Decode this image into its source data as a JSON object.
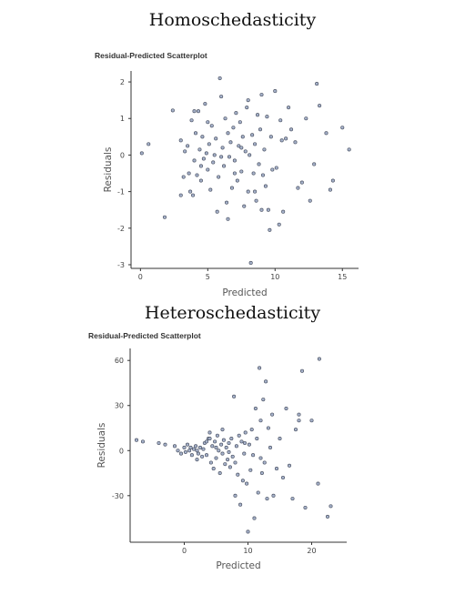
{
  "headings": {
    "top": "Homoschedasticity",
    "bottom": "Heteroschedasticity"
  },
  "colors": {
    "point_fill": "#a7b3cc",
    "point_stroke": "#4e5566",
    "axis": "#333333"
  },
  "chart_data": [
    {
      "type": "scatter",
      "title": "Residual-Predicted Scatterplot",
      "xlabel": "Predicted",
      "ylabel": "Residuals",
      "xlim": [
        -0.7,
        16.2
      ],
      "ylim": [
        -3.1,
        2.3
      ],
      "xticks": [
        0,
        5,
        10,
        15
      ],
      "yticks": [
        2,
        1,
        0,
        -1,
        -2,
        -3
      ],
      "grid": false,
      "points": [
        [
          0.1,
          0.05
        ],
        [
          0.6,
          0.3
        ],
        [
          1.8,
          -1.7
        ],
        [
          2.4,
          1.22
        ],
        [
          3.0,
          0.4
        ],
        [
          3.2,
          -0.6
        ],
        [
          3.3,
          0.1
        ],
        [
          3.5,
          0.25
        ],
        [
          3.6,
          -0.5
        ],
        [
          3.7,
          -1.0
        ],
        [
          3.8,
          0.95
        ],
        [
          3.9,
          -1.1
        ],
        [
          4.0,
          -0.15
        ],
        [
          4.1,
          0.6
        ],
        [
          4.2,
          -0.55
        ],
        [
          4.3,
          1.2
        ],
        [
          4.4,
          0.15
        ],
        [
          4.5,
          -0.3
        ],
        [
          4.6,
          0.5
        ],
        [
          4.7,
          -0.1
        ],
        [
          4.8,
          1.4
        ],
        [
          4.9,
          0.05
        ],
        [
          5.0,
          -0.4
        ],
        [
          5.1,
          0.3
        ],
        [
          5.2,
          -0.95
        ],
        [
          5.3,
          0.8
        ],
        [
          5.4,
          -0.2
        ],
        [
          5.5,
          0.0
        ],
        [
          5.6,
          0.45
        ],
        [
          5.7,
          -1.55
        ],
        [
          5.8,
          -0.6
        ],
        [
          5.9,
          2.1
        ],
        [
          6.0,
          1.6
        ],
        [
          6.1,
          0.2
        ],
        [
          6.2,
          -0.3
        ],
        [
          6.3,
          1.0
        ],
        [
          6.4,
          -1.3
        ],
        [
          6.5,
          0.6
        ],
        [
          6.6,
          -0.05
        ],
        [
          6.7,
          0.35
        ],
        [
          6.8,
          -0.9
        ],
        [
          6.9,
          0.75
        ],
        [
          7.0,
          -0.15
        ],
        [
          7.1,
          1.15
        ],
        [
          7.2,
          -0.7
        ],
        [
          7.3,
          0.25
        ],
        [
          7.4,
          0.9
        ],
        [
          7.5,
          -0.45
        ],
        [
          7.6,
          0.5
        ],
        [
          7.7,
          -1.4
        ],
        [
          7.8,
          0.1
        ],
        [
          7.9,
          1.3
        ],
        [
          8.0,
          -1.0
        ],
        [
          8.1,
          0.0
        ],
        [
          8.2,
          -2.95
        ],
        [
          8.3,
          0.55
        ],
        [
          8.4,
          -0.5
        ],
        [
          8.5,
          0.3
        ],
        [
          8.6,
          -1.25
        ],
        [
          8.7,
          1.1
        ],
        [
          8.8,
          -0.25
        ],
        [
          8.9,
          0.7
        ],
        [
          9.0,
          1.65
        ],
        [
          9.1,
          -0.55
        ],
        [
          9.2,
          0.15
        ],
        [
          9.3,
          -0.85
        ],
        [
          9.4,
          1.05
        ],
        [
          9.5,
          -1.5
        ],
        [
          9.6,
          -2.05
        ],
        [
          9.7,
          0.5
        ],
        [
          9.8,
          -0.4
        ],
        [
          10.0,
          1.75
        ],
        [
          10.1,
          -0.35
        ],
        [
          10.3,
          -1.9
        ],
        [
          10.4,
          0.95
        ],
        [
          10.6,
          -1.55
        ],
        [
          10.8,
          0.45
        ],
        [
          11.0,
          1.3
        ],
        [
          11.2,
          0.7
        ],
        [
          11.5,
          0.35
        ],
        [
          12.0,
          -0.75
        ],
        [
          12.3,
          1.0
        ],
        [
          12.6,
          -1.25
        ],
        [
          12.9,
          -0.25
        ],
        [
          13.1,
          1.95
        ],
        [
          13.3,
          1.35
        ],
        [
          13.8,
          0.6
        ],
        [
          14.1,
          -0.95
        ],
        [
          14.3,
          -0.7
        ],
        [
          15.0,
          0.75
        ],
        [
          15.5,
          0.15
        ],
        [
          5.0,
          0.9
        ],
        [
          6.5,
          -1.75
        ],
        [
          7.0,
          -0.5
        ],
        [
          3.0,
          -1.1
        ],
        [
          9.0,
          -1.5
        ],
        [
          4.5,
          -0.7
        ],
        [
          8.0,
          1.5
        ],
        [
          11.7,
          -0.9
        ],
        [
          6.0,
          -0.05
        ],
        [
          7.5,
          0.2
        ],
        [
          10.5,
          0.4
        ],
        [
          4.0,
          1.2
        ],
        [
          8.5,
          -1.0
        ]
      ]
    },
    {
      "type": "scatter",
      "title": "Residual-Predicted Scatterplot",
      "xlabel": "Predicted",
      "ylabel": "Residuals",
      "xlim": [
        -8.5,
        25.5
      ],
      "ylim": [
        -61,
        68
      ],
      "xticks": [
        0,
        10,
        20
      ],
      "yticks": [
        60,
        30,
        0,
        -30
      ],
      "grid": false,
      "points": [
        [
          -7.5,
          7
        ],
        [
          -6.5,
          6
        ],
        [
          -4,
          5
        ],
        [
          -3,
          4
        ],
        [
          -1.5,
          3
        ],
        [
          -1,
          0
        ],
        [
          -0.5,
          -2
        ],
        [
          0,
          2
        ],
        [
          0.2,
          -1
        ],
        [
          0.5,
          4
        ],
        [
          0.8,
          0
        ],
        [
          1,
          2
        ],
        [
          1.2,
          -3
        ],
        [
          1.5,
          1
        ],
        [
          1.8,
          3
        ],
        [
          2,
          0
        ],
        [
          2.2,
          -2
        ],
        [
          2.5,
          2
        ],
        [
          2.8,
          -4
        ],
        [
          3,
          1
        ],
        [
          3.2,
          5
        ],
        [
          3.5,
          -3
        ],
        [
          3.8,
          8
        ],
        [
          4,
          12
        ],
        [
          4.2,
          -8
        ],
        [
          4.4,
          3
        ],
        [
          4.6,
          -12
        ],
        [
          4.8,
          6
        ],
        [
          5,
          -5
        ],
        [
          5.2,
          10
        ],
        [
          5.4,
          0
        ],
        [
          5.6,
          -15
        ],
        [
          5.8,
          4
        ],
        [
          6,
          -2
        ],
        [
          6.2,
          7
        ],
        [
          6.4,
          -9
        ],
        [
          6.6,
          2
        ],
        [
          6.8,
          -6
        ],
        [
          7,
          5
        ],
        [
          7.2,
          -11
        ],
        [
          7.4,
          8
        ],
        [
          7.6,
          -4
        ],
        [
          7.8,
          36
        ],
        [
          8,
          -8
        ],
        [
          8.2,
          3
        ],
        [
          8.4,
          -16
        ],
        [
          8.6,
          10
        ],
        [
          8.8,
          -36
        ],
        [
          9,
          6
        ],
        [
          9.2,
          -20
        ],
        [
          9.4,
          -2
        ],
        [
          9.6,
          12
        ],
        [
          9.8,
          -22
        ],
        [
          10,
          -54
        ],
        [
          10.2,
          4
        ],
        [
          10.4,
          -13
        ],
        [
          10.6,
          14
        ],
        [
          10.8,
          -3
        ],
        [
          11,
          -45
        ],
        [
          11.2,
          28
        ],
        [
          11.4,
          8
        ],
        [
          11.6,
          -28
        ],
        [
          11.8,
          55
        ],
        [
          12,
          20
        ],
        [
          12.2,
          -15
        ],
        [
          12.4,
          34
        ],
        [
          12.6,
          -8
        ],
        [
          12.8,
          46
        ],
        [
          13,
          -32
        ],
        [
          13.2,
          15
        ],
        [
          13.5,
          2
        ],
        [
          13.8,
          24
        ],
        [
          14,
          -30
        ],
        [
          14.5,
          -12
        ],
        [
          15,
          8
        ],
        [
          15.5,
          -18
        ],
        [
          16,
          28
        ],
        [
          16.5,
          -10
        ],
        [
          17,
          -32
        ],
        [
          17.5,
          14
        ],
        [
          18,
          24
        ],
        [
          18.5,
          53
        ],
        [
          19,
          -38
        ],
        [
          20,
          20
        ],
        [
          21,
          -22
        ],
        [
          21.2,
          61
        ],
        [
          22.5,
          -44
        ],
        [
          23,
          -37
        ],
        [
          4,
          8
        ],
        [
          6,
          14
        ],
        [
          2,
          -6
        ],
        [
          8,
          -30
        ],
        [
          12,
          -5
        ],
        [
          18,
          20
        ],
        [
          5,
          2
        ],
        [
          7,
          -1
        ],
        [
          3.5,
          6
        ],
        [
          9.5,
          5
        ]
      ]
    }
  ]
}
